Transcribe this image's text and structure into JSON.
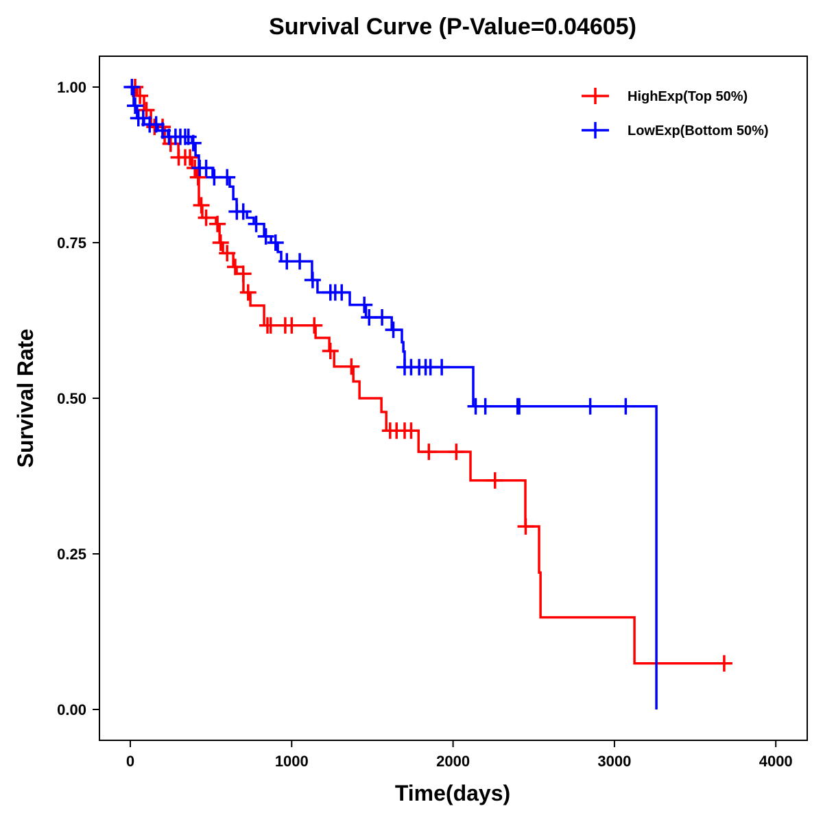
{
  "chart_data": {
    "type": "line",
    "subtype": "kaplan-meier step",
    "title": "Survival Curve (P-Value=0.04605)",
    "xlabel": "Time(days)",
    "ylabel": "Survival Rate",
    "xlim": [
      -200,
      4200
    ],
    "ylim": [
      -0.05,
      1.05
    ],
    "xticks": [
      0,
      1000,
      2000,
      3000,
      4000
    ],
    "xtick_labels": [
      "0",
      "1000",
      "2000",
      "3000",
      "4000"
    ],
    "yticks": [
      0,
      0.25,
      0.5,
      0.75,
      1.0
    ],
    "ytick_labels": [
      "0.00",
      "0.25",
      "0.50",
      "0.75",
      "1.00"
    ],
    "grid": false,
    "legend_position": "top-right",
    "series": [
      {
        "name": "HighExp(Top 50%)",
        "color": "#ff0000",
        "end_time": 3680,
        "steps": [
          [
            0,
            1.0
          ],
          [
            42,
            0.986
          ],
          [
            85,
            0.963
          ],
          [
            128,
            0.936
          ],
          [
            213,
            0.909
          ],
          [
            298,
            0.887
          ],
          [
            383,
            0.87
          ],
          [
            408,
            0.855
          ],
          [
            425,
            0.81
          ],
          [
            446,
            0.79
          ],
          [
            531,
            0.78
          ],
          [
            553,
            0.75
          ],
          [
            574,
            0.733
          ],
          [
            638,
            0.711
          ],
          [
            659,
            0.7
          ],
          [
            701,
            0.67
          ],
          [
            744,
            0.649
          ],
          [
            829,
            0.617
          ],
          [
            1148,
            0.597
          ],
          [
            1233,
            0.576
          ],
          [
            1263,
            0.551
          ],
          [
            1382,
            0.527
          ],
          [
            1420,
            0.5
          ],
          [
            1556,
            0.478
          ],
          [
            1586,
            0.448
          ],
          [
            1786,
            0.414
          ],
          [
            2108,
            0.368
          ],
          [
            2448,
            0.294
          ],
          [
            2533,
            0.22
          ],
          [
            2542,
            0.148
          ],
          [
            3124,
            0.074
          ]
        ],
        "censored": [
          30,
          60,
          100,
          150,
          200,
          250,
          300,
          340,
          370,
          400,
          420,
          440,
          470,
          540,
          560,
          600,
          650,
          700,
          730,
          850,
          870,
          960,
          1000,
          1140,
          1240,
          1370,
          1610,
          1650,
          1700,
          1740,
          1850,
          2020,
          2260,
          2450,
          3680
        ]
      },
      {
        "name": "LowExp(Bottom 50%)",
        "color": "#0000ff",
        "end_time": 3260,
        "steps": [
          [
            0,
            1.0
          ],
          [
            21,
            0.97
          ],
          [
            42,
            0.95
          ],
          [
            85,
            0.94
          ],
          [
            170,
            0.93
          ],
          [
            234,
            0.92
          ],
          [
            383,
            0.91
          ],
          [
            404,
            0.89
          ],
          [
            425,
            0.87
          ],
          [
            510,
            0.855
          ],
          [
            616,
            0.84
          ],
          [
            638,
            0.82
          ],
          [
            659,
            0.8
          ],
          [
            723,
            0.79
          ],
          [
            765,
            0.78
          ],
          [
            829,
            0.76
          ],
          [
            872,
            0.75
          ],
          [
            914,
            0.735
          ],
          [
            935,
            0.72
          ],
          [
            1126,
            0.69
          ],
          [
            1160,
            0.67
          ],
          [
            1360,
            0.65
          ],
          [
            1460,
            0.63
          ],
          [
            1620,
            0.61
          ],
          [
            1683,
            0.59
          ],
          [
            1692,
            0.575
          ],
          [
            1700,
            0.55
          ],
          [
            2125,
            0.487
          ],
          [
            3260,
            0.0
          ]
        ],
        "censored": [
          10,
          30,
          50,
          80,
          120,
          160,
          200,
          240,
          280,
          310,
          340,
          360,
          390,
          430,
          470,
          520,
          600,
          660,
          700,
          780,
          840,
          900,
          970,
          1050,
          1130,
          1240,
          1270,
          1310,
          1450,
          1480,
          1560,
          1630,
          1700,
          1740,
          1790,
          1830,
          1860,
          1930,
          2140,
          2200,
          2400,
          2410,
          2850,
          3070
        ]
      }
    ]
  }
}
